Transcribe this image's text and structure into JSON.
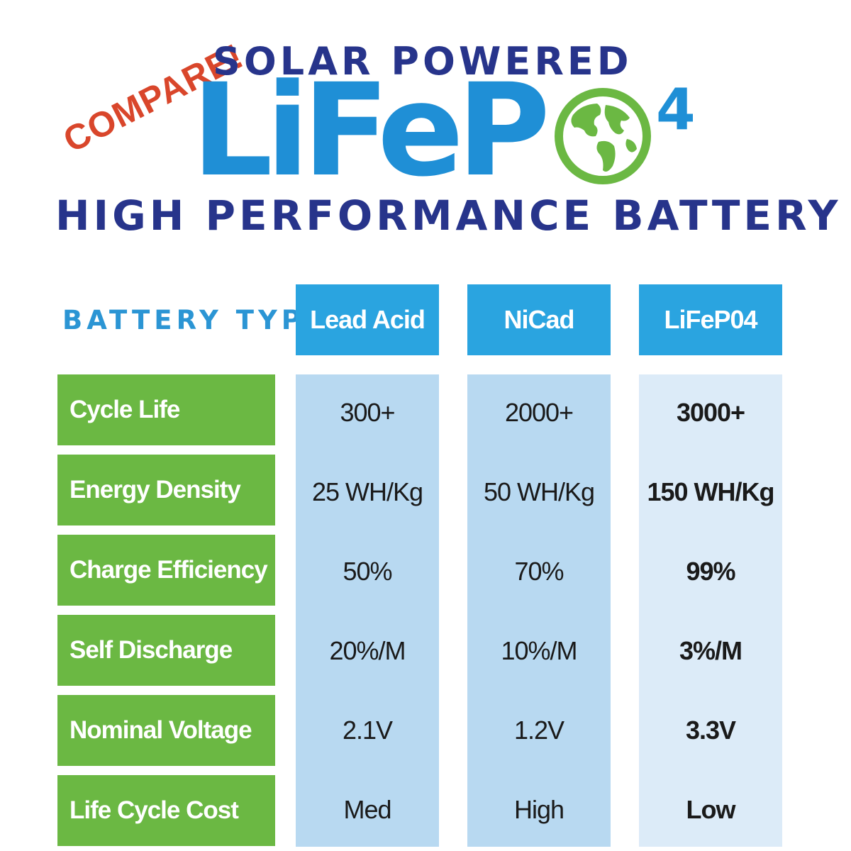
{
  "header": {
    "compare": "COMPARE!",
    "solar_powered": "SOLAR POWERED",
    "brand_prefix": "LiFeP",
    "brand_suffix": "4",
    "tagline": "HIGH PERFORMANCE BATTERY"
  },
  "table": {
    "type_label": "BATTERY TYPE",
    "columns": [
      "Lead Acid",
      "NiCad",
      "LiFeP04"
    ],
    "rows": [
      {
        "label": "Cycle Life",
        "values": [
          "300+",
          "2000+",
          "3000+"
        ]
      },
      {
        "label": "Energy Density",
        "values": [
          "25 WH/Kg",
          "50 WH/Kg",
          "150 WH/Kg"
        ]
      },
      {
        "label": "Charge Efficiency",
        "values": [
          "50%",
          "70%",
          "99%"
        ]
      },
      {
        "label": "Self Discharge",
        "values": [
          "20%/M",
          "10%/M",
          "3%/M"
        ]
      },
      {
        "label": "Nominal Voltage",
        "values": [
          "2.1V",
          "1.2V",
          "3.3V"
        ]
      },
      {
        "label": "Life Cycle Cost",
        "values": [
          "Med",
          "High",
          "Low"
        ]
      }
    ]
  },
  "colors": {
    "navy": "#27348b",
    "blue": "#1f8fd6",
    "header_blue": "#2aa4e0",
    "green": "#6bb843",
    "light_blue": "#b8d9f1",
    "compare_red": "#d9462b"
  },
  "icons": {
    "globe": "globe-icon"
  }
}
